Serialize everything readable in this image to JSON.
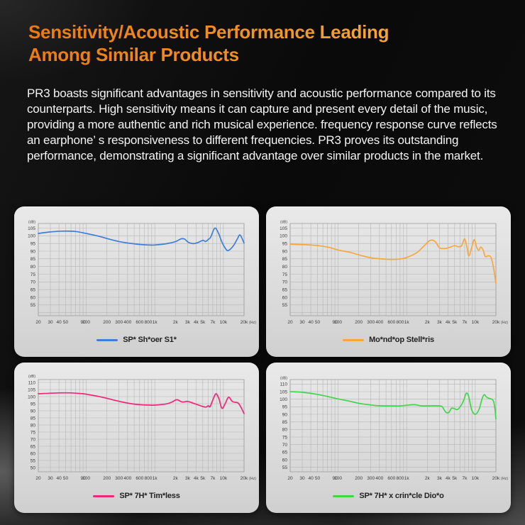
{
  "header": {
    "title_line1": "Sensitivity/Acoustic Performance Leading",
    "title_line2": "Among Similar Products"
  },
  "intro": {
    "text": "PR3 boasts significant advantages in sensitivity and acoustic performance compared to its counterparts. High sensitivity means it can capture and present every detail of the music, providing a more authentic and rich musical experience. frequency response curve reflects an earphone’ s responsiveness to different frequencies. PR3 proves its outstanding performance, demonstrating a significant advantage over similar products in the market."
  },
  "chart_data": {
    "type": "line",
    "x_axis": {
      "scale": "log",
      "range": [
        20,
        20000
      ],
      "unit": "(Hz)",
      "ticks": [
        {
          "v": 20,
          "t": "20"
        },
        {
          "v": 30,
          "t": "30"
        },
        {
          "v": 40,
          "t": "40"
        },
        {
          "v": 50,
          "t": "50"
        },
        {
          "v": 90,
          "t": "90"
        },
        {
          "v": 100,
          "t": "100"
        },
        {
          "v": 200,
          "t": "200"
        },
        {
          "v": 300,
          "t": "300"
        },
        {
          "v": 400,
          "t": "400"
        },
        {
          "v": 600,
          "t": "600"
        },
        {
          "v": 800,
          "t": "800"
        },
        {
          "v": 1000,
          "t": "1k"
        },
        {
          "v": 2000,
          "t": "2k"
        },
        {
          "v": 3000,
          "t": "3k"
        },
        {
          "v": 4000,
          "t": "4k"
        },
        {
          "v": 5000,
          "t": "5k"
        },
        {
          "v": 7000,
          "t": "7k"
        },
        {
          "v": 10000,
          "t": "10k"
        },
        {
          "v": 20000,
          "t": "20k"
        }
      ]
    },
    "y_axis_unit": "(dB)",
    "grid": true,
    "legend_position": "bottom-center",
    "charts": [
      {
        "legend": "SP* Sh*oer S1*",
        "color": "#3f7ed6",
        "ylim": [
          48,
          108
        ],
        "ygrid": [
          50,
          55,
          60,
          65,
          70,
          75,
          80,
          85,
          90,
          95,
          100,
          105
        ],
        "yticks": [
          55,
          60,
          65,
          70,
          75,
          80,
          85,
          90,
          95,
          100,
          105
        ],
        "points": [
          [
            20,
            101.5
          ],
          [
            30,
            102.5
          ],
          [
            45,
            103
          ],
          [
            70,
            102.8
          ],
          [
            100,
            101.5
          ],
          [
            150,
            99.8
          ],
          [
            200,
            98.2
          ],
          [
            300,
            96.3
          ],
          [
            400,
            95.3
          ],
          [
            600,
            94.4
          ],
          [
            800,
            94
          ],
          [
            1000,
            94
          ],
          [
            1500,
            94.9
          ],
          [
            2000,
            96.2
          ],
          [
            2400,
            98
          ],
          [
            2700,
            97.9
          ],
          [
            3100,
            95.7
          ],
          [
            3600,
            94.9
          ],
          [
            4200,
            95.5
          ],
          [
            5000,
            97
          ],
          [
            5500,
            96.3
          ],
          [
            6000,
            97.6
          ],
          [
            6500,
            99
          ],
          [
            7500,
            105
          ],
          [
            8500,
            101.5
          ],
          [
            9500,
            96
          ],
          [
            11000,
            91
          ],
          [
            12000,
            90.6
          ],
          [
            14000,
            93.5
          ],
          [
            16000,
            98
          ],
          [
            17500,
            100.5
          ],
          [
            20000,
            95.2
          ]
        ]
      },
      {
        "legend": "Mo*nd*op Stell*ris",
        "color": "#f5a83c",
        "ylim": [
          48,
          108
        ],
        "ygrid": [
          50,
          55,
          60,
          65,
          70,
          75,
          80,
          85,
          90,
          95,
          100,
          105
        ],
        "yticks": [
          55,
          60,
          65,
          70,
          75,
          80,
          85,
          90,
          95,
          100,
          105
        ],
        "points": [
          [
            20,
            94.5
          ],
          [
            40,
            94
          ],
          [
            70,
            92.7
          ],
          [
            100,
            90.8
          ],
          [
            150,
            89.2
          ],
          [
            200,
            87.6
          ],
          [
            300,
            85.7
          ],
          [
            400,
            85.1
          ],
          [
            600,
            84.6
          ],
          [
            800,
            84.9
          ],
          [
            1000,
            85.9
          ],
          [
            1400,
            89
          ],
          [
            1800,
            93.5
          ],
          [
            2200,
            97
          ],
          [
            2600,
            96.3
          ],
          [
            3000,
            92.2
          ],
          [
            3600,
            91.7
          ],
          [
            4300,
            92.6
          ],
          [
            5000,
            93.6
          ],
          [
            5600,
            92.9
          ],
          [
            6300,
            93.4
          ],
          [
            7000,
            98
          ],
          [
            7600,
            92
          ],
          [
            8100,
            87
          ],
          [
            9000,
            93.5
          ],
          [
            9700,
            97.5
          ],
          [
            10500,
            92.5
          ],
          [
            11200,
            90.5
          ],
          [
            12000,
            92.7
          ],
          [
            13000,
            90.8
          ],
          [
            14000,
            86.5
          ],
          [
            15500,
            87
          ],
          [
            17000,
            85.8
          ],
          [
            18500,
            79
          ],
          [
            20000,
            69
          ]
        ]
      },
      {
        "legend": "SP* 7H* Tim*less",
        "color": "#ee2878",
        "ylim": [
          47,
          112
        ],
        "ygrid": [
          50,
          55,
          60,
          65,
          70,
          75,
          80,
          85,
          90,
          95,
          100,
          105,
          110
        ],
        "yticks": [
          50,
          55,
          60,
          65,
          70,
          75,
          80,
          85,
          90,
          95,
          100,
          105,
          110
        ],
        "points": [
          [
            20,
            102
          ],
          [
            40,
            102.6
          ],
          [
            60,
            102.6
          ],
          [
            90,
            102
          ],
          [
            120,
            101
          ],
          [
            170,
            99.6
          ],
          [
            250,
            97.6
          ],
          [
            350,
            96
          ],
          [
            500,
            94.7
          ],
          [
            700,
            94.1
          ],
          [
            1000,
            94
          ],
          [
            1500,
            94.9
          ],
          [
            1800,
            96.3
          ],
          [
            2100,
            97.8
          ],
          [
            2500,
            96.2
          ],
          [
            3000,
            96.6
          ],
          [
            3500,
            95.6
          ],
          [
            4200,
            94.3
          ],
          [
            5000,
            93
          ],
          [
            5600,
            92.6
          ],
          [
            6000,
            93.6
          ],
          [
            6400,
            93
          ],
          [
            7200,
            99
          ],
          [
            7800,
            102
          ],
          [
            8600,
            98.5
          ],
          [
            9500,
            91.8
          ],
          [
            10500,
            94.5
          ],
          [
            11500,
            98.8
          ],
          [
            12200,
            99.4
          ],
          [
            13500,
            96.5
          ],
          [
            15000,
            96
          ],
          [
            16500,
            95.4
          ],
          [
            18000,
            92.5
          ],
          [
            20000,
            88
          ]
        ]
      },
      {
        "legend": "SP* 7H* x crin*cle Dio*o",
        "color": "#3fd64b",
        "ylim": [
          52,
          113
        ],
        "ygrid": [
          55,
          60,
          65,
          70,
          75,
          80,
          85,
          90,
          95,
          100,
          105,
          110
        ],
        "yticks": [
          55,
          60,
          65,
          70,
          75,
          80,
          85,
          90,
          95,
          100,
          105,
          110
        ],
        "points": [
          [
            20,
            105
          ],
          [
            30,
            104.6
          ],
          [
            50,
            103.2
          ],
          [
            80,
            101.2
          ],
          [
            100,
            100.2
          ],
          [
            150,
            98.6
          ],
          [
            200,
            97.3
          ],
          [
            300,
            96.2
          ],
          [
            400,
            95.7
          ],
          [
            600,
            95.6
          ],
          [
            800,
            95.6
          ],
          [
            1000,
            96
          ],
          [
            1300,
            96.4
          ],
          [
            1600,
            95.7
          ],
          [
            2000,
            95.6
          ],
          [
            2500,
            95.7
          ],
          [
            3000,
            95.6
          ],
          [
            3300,
            95
          ],
          [
            3700,
            91.5
          ],
          [
            4100,
            91.2
          ],
          [
            4500,
            94
          ],
          [
            5000,
            93.7
          ],
          [
            5500,
            93.2
          ],
          [
            6200,
            95.8
          ],
          [
            6800,
            99.5
          ],
          [
            7400,
            104
          ],
          [
            8000,
            102
          ],
          [
            8800,
            93.5
          ],
          [
            9700,
            90.2
          ],
          [
            10500,
            90.6
          ],
          [
            11500,
            94
          ],
          [
            12500,
            100
          ],
          [
            13500,
            103
          ],
          [
            14500,
            101.5
          ],
          [
            16000,
            100.5
          ],
          [
            17500,
            100
          ],
          [
            18500,
            98.5
          ],
          [
            19300,
            94
          ],
          [
            20000,
            87
          ]
        ]
      }
    ]
  }
}
